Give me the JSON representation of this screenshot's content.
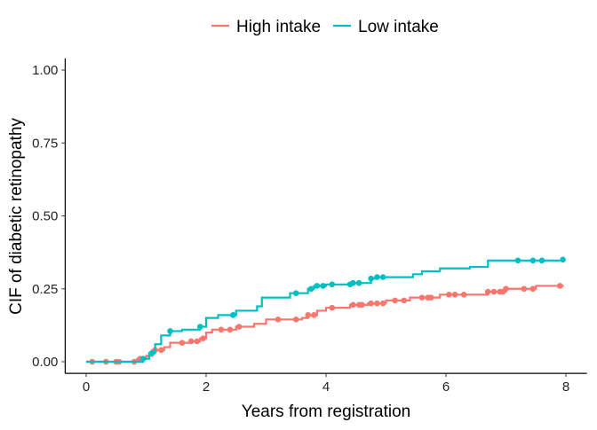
{
  "chart_data": {
    "type": "line",
    "step": true,
    "title": "",
    "xlabel": "Years from registration",
    "ylabel": "CIF of diabetic retinopathy",
    "xlim": [
      -0.35,
      8.35
    ],
    "ylim": [
      -0.04,
      1.04
    ],
    "xticks": [
      0,
      2,
      4,
      6,
      8
    ],
    "xtick_labels": [
      "0",
      "2",
      "4",
      "6",
      "8"
    ],
    "yticks": [
      0,
      0.25,
      0.5,
      0.75,
      1
    ],
    "ytick_labels": [
      "0.00",
      "0.25",
      "0.50",
      "0.75",
      "1.00"
    ],
    "grid": false,
    "legend_position": "top",
    "series": [
      {
        "name": "High intake",
        "color": "#F8766D",
        "steps": [
          [
            0,
            0
          ],
          [
            0.85,
            0.01
          ],
          [
            1.0,
            0.02
          ],
          [
            1.1,
            0.04
          ],
          [
            1.3,
            0.05
          ],
          [
            1.4,
            0.065
          ],
          [
            1.75,
            0.07
          ],
          [
            1.9,
            0.08
          ],
          [
            2.0,
            0.1
          ],
          [
            2.1,
            0.11
          ],
          [
            2.5,
            0.12
          ],
          [
            2.8,
            0.13
          ],
          [
            3.0,
            0.145
          ],
          [
            3.6,
            0.15
          ],
          [
            3.7,
            0.16
          ],
          [
            3.85,
            0.175
          ],
          [
            4.0,
            0.185
          ],
          [
            4.4,
            0.195
          ],
          [
            4.7,
            0.2
          ],
          [
            5.0,
            0.21
          ],
          [
            5.4,
            0.22
          ],
          [
            5.9,
            0.23
          ],
          [
            6.7,
            0.24
          ],
          [
            7.0,
            0.25
          ],
          [
            7.5,
            0.26
          ],
          [
            7.95,
            0.262
          ]
        ],
        "censored": [
          0.1,
          0.33,
          0.5,
          0.55,
          0.8,
          0.9,
          1.15,
          1.25,
          1.6,
          1.75,
          1.85,
          1.95,
          2.25,
          2.4,
          2.55,
          3.2,
          3.5,
          3.7,
          3.8,
          4.1,
          4.45,
          4.55,
          4.6,
          4.75,
          4.85,
          4.95,
          5.15,
          5.3,
          5.6,
          5.7,
          5.75,
          6.05,
          6.15,
          6.3,
          6.7,
          6.8,
          6.9,
          6.95,
          7.0,
          7.3,
          7.45,
          7.9
        ]
      },
      {
        "name": "Low intake",
        "color": "#00BFC4",
        "steps": [
          [
            0,
            0
          ],
          [
            0.95,
            0.01
          ],
          [
            1.05,
            0.03
          ],
          [
            1.15,
            0.06
          ],
          [
            1.25,
            0.09
          ],
          [
            1.4,
            0.105
          ],
          [
            1.6,
            0.11
          ],
          [
            1.9,
            0.12
          ],
          [
            2.0,
            0.15
          ],
          [
            2.2,
            0.16
          ],
          [
            2.5,
            0.175
          ],
          [
            2.85,
            0.19
          ],
          [
            2.93,
            0.22
          ],
          [
            3.4,
            0.235
          ],
          [
            3.7,
            0.25
          ],
          [
            3.8,
            0.26
          ],
          [
            4.0,
            0.265
          ],
          [
            4.45,
            0.27
          ],
          [
            4.75,
            0.285
          ],
          [
            4.85,
            0.29
          ],
          [
            5.3,
            0.29
          ],
          [
            5.45,
            0.3
          ],
          [
            5.6,
            0.31
          ],
          [
            5.9,
            0.32
          ],
          [
            6.4,
            0.325
          ],
          [
            6.7,
            0.347
          ],
          [
            7.95,
            0.35
          ]
        ],
        "censored": [
          0.95,
          1.1,
          1.4,
          1.9,
          2.45,
          3.5,
          3.75,
          3.85,
          3.95,
          4.1,
          4.4,
          4.45,
          4.55,
          4.75,
          4.85,
          4.95,
          7.2,
          7.45,
          7.6,
          7.95
        ]
      }
    ]
  }
}
